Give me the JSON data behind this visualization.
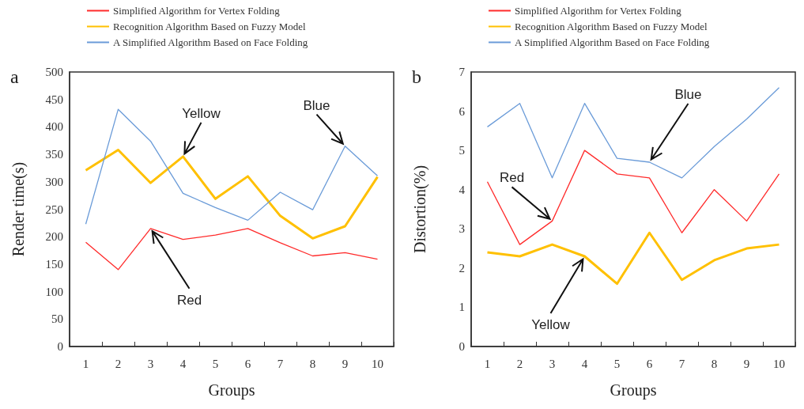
{
  "chart_data": [
    {
      "type": "line",
      "title": "a",
      "xlabel": "Groups",
      "ylabel": "Render time(s)",
      "categories": [
        "1",
        "2",
        "3",
        "4",
        "5",
        "6",
        "7",
        "8",
        "9",
        "10"
      ],
      "series": [
        {
          "name": "Simplified Algorithm for Vertex Folding",
          "color": "#ff2b2b",
          "values": [
            190,
            140,
            215,
            195,
            203,
            215,
            189,
            165,
            171,
            159
          ]
        },
        {
          "name": "Recognition Algorithm Based on Fuzzy Model",
          "color": "#ffc000",
          "values": [
            321,
            358,
            298,
            346,
            269,
            310,
            238,
            197,
            219,
            309
          ]
        },
        {
          "name": "A Simplified Algorithm Based on Face Folding",
          "color": "#6a9bd8",
          "values": [
            223,
            432,
            374,
            279,
            253,
            230,
            281,
            249,
            365,
            311
          ]
        }
      ],
      "ylim": [
        0,
        500
      ],
      "yticks": [
        0,
        50,
        100,
        150,
        200,
        250,
        300,
        350,
        400,
        450,
        500
      ],
      "grid": false,
      "legend": "top",
      "marker": "none",
      "line_style": "solid",
      "annotations": [
        {
          "text": "Yellow",
          "x": "4",
          "y": 346
        },
        {
          "text": "Blue",
          "x": "9",
          "y": 365
        },
        {
          "text": "Red",
          "x": "3",
          "y": 215
        }
      ]
    },
    {
      "type": "line",
      "title": "b",
      "xlabel": "Groups",
      "ylabel": "Distortion(%)",
      "categories": [
        "1",
        "2",
        "3",
        "4",
        "5",
        "6",
        "7",
        "8",
        "9",
        "10"
      ],
      "series": [
        {
          "name": "Simplified Algorithm for Vertex Folding",
          "color": "#ff2b2b",
          "values": [
            4.2,
            2.6,
            3.2,
            5.0,
            4.4,
            4.3,
            2.9,
            4.0,
            3.2,
            4.4
          ]
        },
        {
          "name": "Recognition Algorithm Based on Fuzzy Model",
          "color": "#ffc000",
          "values": [
            2.4,
            2.3,
            2.6,
            2.3,
            1.6,
            2.9,
            1.7,
            2.2,
            2.5,
            2.6
          ]
        },
        {
          "name": "A Simplified Algorithm Based on Face Folding",
          "color": "#6a9bd8",
          "values": [
            5.6,
            6.2,
            4.3,
            6.2,
            4.8,
            4.7,
            4.3,
            5.1,
            5.8,
            6.6
          ]
        }
      ],
      "ylim": [
        0,
        7
      ],
      "yticks": [
        0,
        1,
        2,
        3,
        4,
        5,
        6,
        7
      ],
      "grid": false,
      "legend": "top",
      "marker": "none",
      "line_style": "solid",
      "annotations": [
        {
          "text": "Blue",
          "x": "6",
          "y": 4.7
        },
        {
          "text": "Red",
          "x": "3",
          "y": 3.2
        },
        {
          "text": "Yellow",
          "x": "4",
          "y": 2.3
        }
      ]
    }
  ]
}
